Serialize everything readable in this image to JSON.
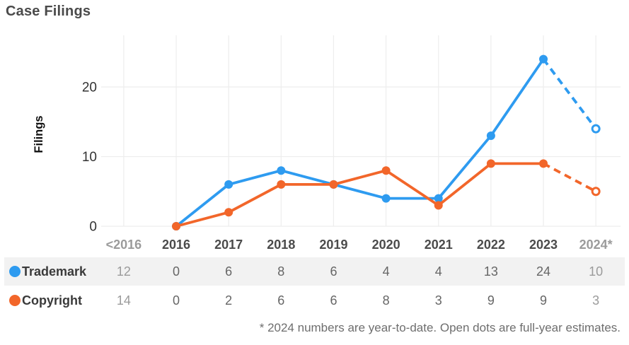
{
  "title": "Case Filings",
  "footnote": "* 2024 numbers are year-to-date. Open dots are full-year estimates.",
  "colors": {
    "trademark": "#2E9BF0",
    "copyright": "#F2662A",
    "row_stripe": "#f2f2f2",
    "gridline": "#ededed",
    "muted_text": "#9b9b9b"
  },
  "chart_data": {
    "type": "line",
    "title": "Case Filings",
    "ylabel": "Filings",
    "xlabel": "",
    "categories": [
      "<2016",
      "2016",
      "2017",
      "2018",
      "2019",
      "2020",
      "2021",
      "2022",
      "2023",
      "2024*"
    ],
    "muted_category_indexes": [
      0,
      9
    ],
    "yticks": [
      0,
      10,
      20
    ],
    "ylim": [
      0,
      27
    ],
    "grid": true,
    "legend_position": "table-left",
    "plot_start_index": 1,
    "solid_end_index": 8,
    "estimate_index": 9,
    "series": [
      {
        "name": "Trademark",
        "color": "#2E9BF0",
        "values": [
          12,
          0,
          6,
          8,
          6,
          4,
          4,
          13,
          24,
          10
        ],
        "full_year_estimate": 14
      },
      {
        "name": "Copyright",
        "color": "#F2662A",
        "values": [
          14,
          0,
          2,
          6,
          6,
          8,
          3,
          9,
          9,
          3
        ],
        "full_year_estimate": 5
      }
    ]
  }
}
